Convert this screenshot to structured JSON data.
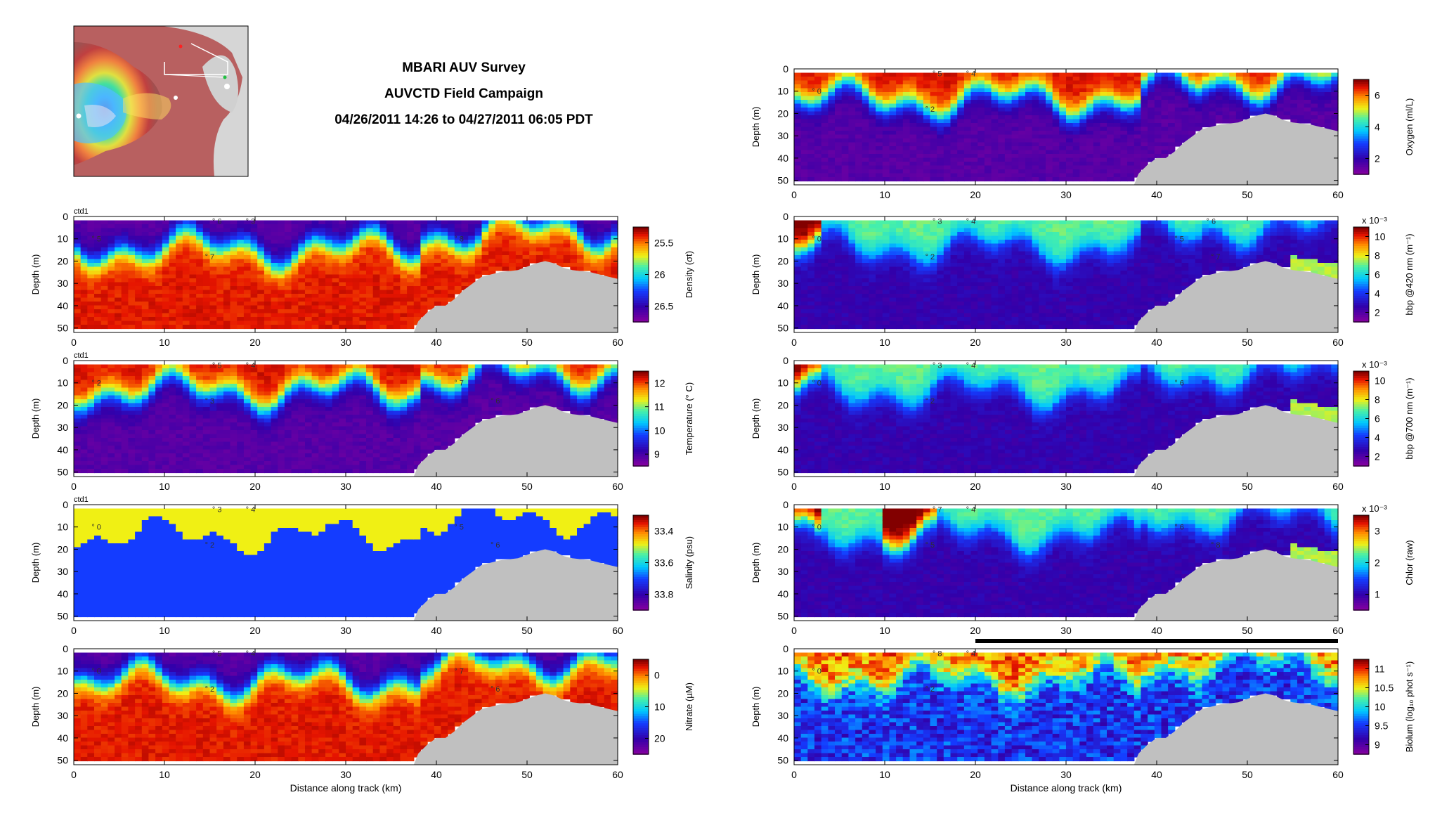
{
  "title": {
    "line1": "MBARI AUV Survey",
    "line2": "AUVCTD Field Campaign",
    "line3": "04/26/2011 14:26 to 04/27/2011 06:05 PDT"
  },
  "map": {
    "type": "survey-track-inset"
  },
  "chart_data": [
    {
      "type": "heatmap",
      "variable": "density",
      "tag": "ctd1",
      "ylabel": "Depth (m)",
      "xlabel": "",
      "xlim": [
        0,
        60
      ],
      "ylim": [
        52,
        0
      ],
      "x_ticks": [
        "0",
        "10",
        "20",
        "30",
        "40",
        "50",
        "60"
      ],
      "y_ticks": [
        "0",
        "10",
        "20",
        "30",
        "40",
        "50"
      ],
      "colorbar": {
        "label": "Density (σt)",
        "ticks": [
          "25.5",
          "26",
          "26.5"
        ],
        "reversed": true
      },
      "colorscale": "jet-reversed",
      "profile_marks": [
        "3",
        "5",
        "7",
        "6",
        "8"
      ],
      "grid": false
    },
    {
      "type": "heatmap",
      "variable": "temperature",
      "tag": "ctd1",
      "ylabel": "Depth (m)",
      "xlabel": "",
      "xlim": [
        0,
        60
      ],
      "ylim": [
        52,
        0
      ],
      "x_ticks": [
        "0",
        "10",
        "20",
        "30",
        "40",
        "50",
        "60"
      ],
      "y_ticks": [
        "0",
        "10",
        "20",
        "30",
        "40",
        "50"
      ],
      "colorbar": {
        "label": "Temperature (° C)",
        "ticks": [
          "9",
          "10",
          "11",
          "12"
        ]
      },
      "colorscale": "jet",
      "profile_marks": [
        "4",
        "2",
        "3",
        "5",
        "7",
        "6"
      ],
      "grid": false
    },
    {
      "type": "heatmap",
      "variable": "salinity",
      "tag": "ctd1",
      "ylabel": "Depth (m)",
      "xlabel": "",
      "xlim": [
        0,
        60
      ],
      "ylim": [
        52,
        0
      ],
      "x_ticks": [
        "0",
        "10",
        "20",
        "30",
        "40",
        "50",
        "60"
      ],
      "y_ticks": [
        "0",
        "10",
        "20",
        "30",
        "40",
        "50"
      ],
      "colorbar": {
        "label": "Salinity (psu)",
        "ticks": [
          "33.4",
          "33.6",
          "33.8"
        ],
        "reversed": true
      },
      "colorscale": "jet-reversed",
      "profile_marks": [
        "4",
        "0",
        "2",
        "3",
        "5",
        "6"
      ],
      "grid": false
    },
    {
      "type": "heatmap",
      "variable": "nitrate",
      "tag": "",
      "ylabel": "Depth (m)",
      "xlabel": "Distance along track (km)",
      "xlim": [
        0,
        60
      ],
      "ylim": [
        52,
        0
      ],
      "x_ticks": [
        "0",
        "10",
        "20",
        "30",
        "40",
        "50",
        "60"
      ],
      "y_ticks": [
        "0",
        "10",
        "20",
        "30",
        "40",
        "50"
      ],
      "colorbar": {
        "label": "Nitrate (µM)",
        "ticks": [
          "0",
          "10",
          "20"
        ],
        "reversed": true
      },
      "colorscale": "jet-reversed",
      "profile_marks": [
        "4",
        "0",
        "2",
        "5",
        "7",
        "6"
      ],
      "grid": false
    },
    {
      "type": "heatmap",
      "variable": "oxygen",
      "tag": "",
      "ylabel": "Depth (m)",
      "xlabel": "",
      "xlim": [
        0,
        60
      ],
      "ylim": [
        52,
        0
      ],
      "x_ticks": [
        "0",
        "10",
        "20",
        "30",
        "40",
        "50",
        "60"
      ],
      "y_ticks": [
        "0",
        "10",
        "20",
        "30",
        "40",
        "50"
      ],
      "colorbar": {
        "label": "Oxygen (ml/L)",
        "ticks": [
          "2",
          "4",
          "6"
        ]
      },
      "colorscale": "jet",
      "profile_marks": [
        "4",
        "0",
        "2",
        "5"
      ],
      "grid": false
    },
    {
      "type": "heatmap",
      "variable": "bbp420",
      "tag": "",
      "ylabel": "Depth (m)",
      "xlabel": "",
      "xlim": [
        0,
        60
      ],
      "ylim": [
        52,
        0
      ],
      "x_ticks": [
        "0",
        "10",
        "20",
        "30",
        "40",
        "50",
        "60"
      ],
      "y_ticks": [
        "0",
        "10",
        "20",
        "30",
        "40",
        "50"
      ],
      "colorbar": {
        "label": "bbp @420 nm (m⁻¹)",
        "ticks": [
          "2",
          "4",
          "6",
          "8",
          "10"
        ],
        "exponent": "x 10⁻³"
      },
      "colorscale": "jet",
      "profile_marks": [
        "4",
        "0",
        "2",
        "3",
        "5",
        "7",
        "6"
      ],
      "grid": false
    },
    {
      "type": "heatmap",
      "variable": "bbp700",
      "tag": "",
      "ylabel": "Depth (m)",
      "xlabel": "",
      "xlim": [
        0,
        60
      ],
      "ylim": [
        52,
        0
      ],
      "x_ticks": [
        "0",
        "10",
        "20",
        "30",
        "40",
        "50",
        "60"
      ],
      "y_ticks": [
        "0",
        "10",
        "20",
        "30",
        "40",
        "50"
      ],
      "colorbar": {
        "label": "bbp @700 nm (m⁻¹)",
        "ticks": [
          "2",
          "4",
          "6",
          "8",
          "10"
        ],
        "exponent": "x 10⁻³"
      },
      "colorscale": "jet",
      "profile_marks": [
        "4",
        "0",
        "2",
        "3",
        "6"
      ],
      "grid": false
    },
    {
      "type": "heatmap",
      "variable": "chlor",
      "tag": "",
      "ylabel": "Depth (m)",
      "xlabel": "",
      "xlim": [
        0,
        60
      ],
      "ylim": [
        52,
        0
      ],
      "x_ticks": [
        "0",
        "10",
        "20",
        "30",
        "40",
        "50",
        "60"
      ],
      "y_ticks": [
        "0",
        "10",
        "20",
        "30",
        "40",
        "50"
      ],
      "colorbar": {
        "label": "Chlor (raw)",
        "ticks": [
          "1",
          "2",
          "3"
        ],
        "exponent": "x 10⁻³"
      },
      "colorscale": "jet",
      "profile_marks": [
        "4",
        "0",
        "5",
        "7",
        "6",
        "8"
      ],
      "grid": false
    },
    {
      "type": "heatmap",
      "variable": "biolum",
      "tag": "",
      "ylabel": "Depth (m)",
      "xlabel": "Distance along track (km)",
      "xlim": [
        0,
        60
      ],
      "ylim": [
        52,
        0
      ],
      "x_ticks": [
        "0",
        "10",
        "20",
        "30",
        "40",
        "50",
        "60"
      ],
      "y_ticks": [
        "0",
        "10",
        "20",
        "30",
        "40",
        "50"
      ],
      "colorbar": {
        "label": "Biolum (log₁₀ phot s⁻¹)",
        "ticks": [
          "9",
          "9.5",
          "10",
          "10.5",
          "11"
        ]
      },
      "colorscale": "jet",
      "profile_marks": [
        "4",
        "0",
        "2",
        "8"
      ],
      "night_bar": true,
      "grid": false
    }
  ]
}
